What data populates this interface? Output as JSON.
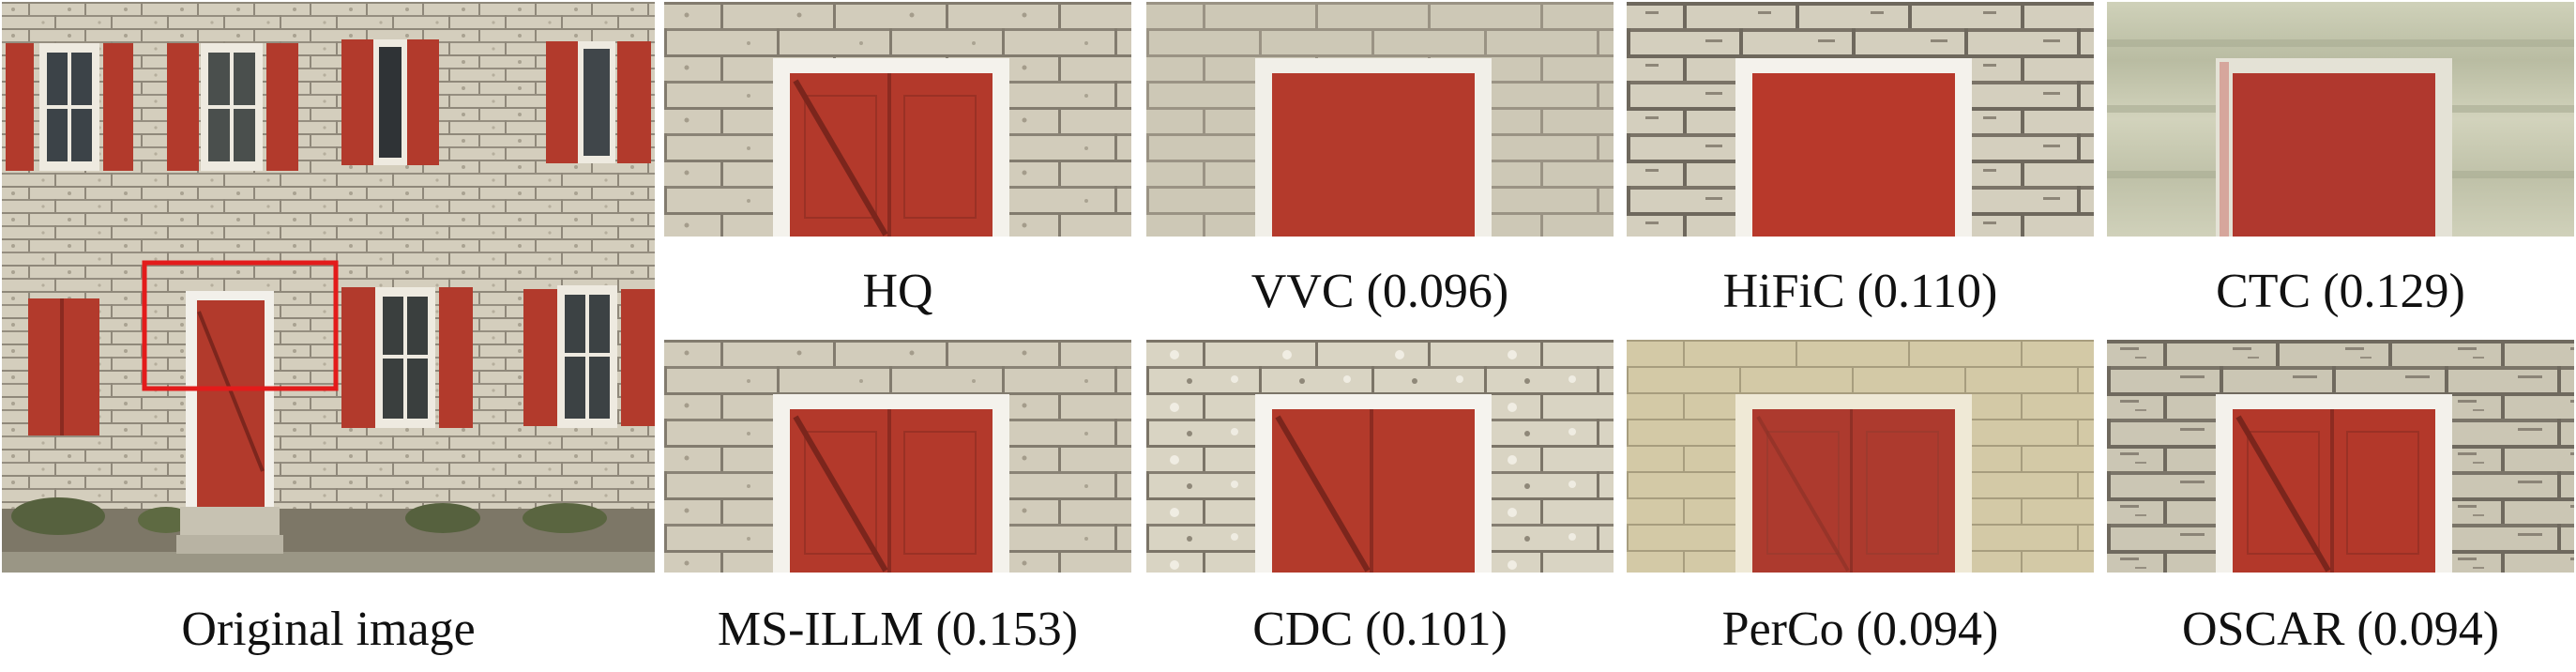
{
  "figure": {
    "captions": {
      "original": "Original image",
      "hq": "HQ",
      "vvc": "VVC (0.096)",
      "hific": "HiFiC (0.110)",
      "ctc": "CTC (0.129)",
      "msillm": "MS-ILLM (0.153)",
      "cdc": "CDC (0.101)",
      "perco": "PerCo (0.094)",
      "oscar": "OSCAR (0.094)"
    },
    "colors": {
      "wall": "#d6d0bf",
      "mortar": "#8e877a",
      "door_red": "#b23a2c",
      "door_dark": "#8a2a20",
      "frame": "#f2f0ea",
      "highlight_box": "#e31b1b"
    }
  }
}
